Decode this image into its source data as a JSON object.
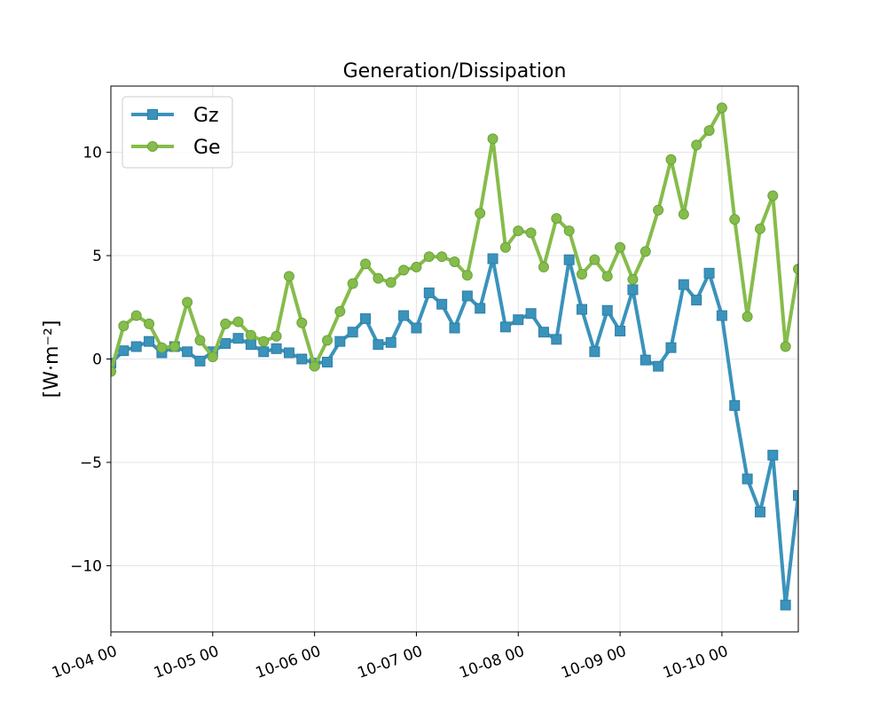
{
  "chart_data": {
    "type": "line",
    "title": "Generation/Dissipation",
    "xlabel": "",
    "ylabel": "[W·m⁻²]",
    "x_axis": "datetime",
    "x_start": "2023-10-04 00:00",
    "x_interval_hours": 3,
    "xlim": [
      "2023-10-04 00:00",
      "2023-10-10 18:00"
    ],
    "ylim": [
      -13.2,
      13.2
    ],
    "x_ticks": [
      "2023-10-04 00:00",
      "2023-10-05 00:00",
      "2023-10-06 00:00",
      "2023-10-07 00:00",
      "2023-10-08 00:00",
      "2023-10-09 00:00",
      "2023-10-10 00:00"
    ],
    "x_tick_labels": [
      "10-04 00",
      "10-05 00",
      "10-06 00",
      "10-07 00",
      "10-08 00",
      "10-09 00",
      "10-10 00"
    ],
    "y_ticks": [
      -10,
      -5,
      0,
      5,
      10
    ],
    "y_tick_labels": [
      "−10",
      "−5",
      "0",
      "5",
      "10"
    ],
    "grid": true,
    "legend_position": "top-left",
    "series": [
      {
        "name": "Gz",
        "color": "#3a93bb",
        "marker": "square",
        "values": [
          -0.2,
          0.4,
          0.6,
          0.85,
          0.3,
          0.6,
          0.35,
          -0.1,
          0.35,
          0.75,
          1.0,
          0.7,
          0.35,
          0.5,
          0.3,
          0.0,
          -0.2,
          -0.15,
          0.85,
          1.3,
          1.95,
          0.7,
          0.8,
          2.1,
          1.5,
          3.2,
          2.65,
          1.5,
          3.05,
          2.45,
          4.85,
          1.55,
          1.9,
          2.2,
          1.3,
          0.95,
          4.8,
          2.4,
          0.35,
          2.35,
          1.35,
          3.35,
          -0.05,
          -0.35,
          0.55,
          3.6,
          2.85,
          4.15,
          2.1,
          -2.25,
          -5.8,
          -7.4,
          -4.65,
          -11.9,
          -6.6
        ]
      },
      {
        "name": "Ge",
        "color": "#86bc4b",
        "marker": "circle",
        "values": [
          -0.6,
          1.6,
          2.1,
          1.7,
          0.55,
          0.6,
          2.75,
          0.9,
          0.1,
          1.7,
          1.8,
          1.15,
          0.85,
          1.1,
          4.0,
          1.75,
          -0.35,
          0.9,
          2.3,
          3.65,
          4.6,
          3.9,
          3.7,
          4.3,
          4.45,
          4.95,
          4.95,
          4.7,
          4.05,
          7.05,
          10.65,
          5.4,
          6.2,
          6.1,
          4.45,
          6.8,
          6.2,
          4.1,
          4.8,
          4.0,
          5.4,
          3.85,
          5.2,
          7.2,
          9.65,
          7.0,
          10.35,
          11.05,
          12.15,
          6.75,
          2.05,
          6.3,
          7.9,
          0.6,
          4.35
        ]
      }
    ]
  },
  "colors": {
    "gz": "#3a93bb",
    "ge": "#86bc4b",
    "gz_marker_edge": "#2f7ea6",
    "ge_marker_edge": "#6aa33a"
  }
}
